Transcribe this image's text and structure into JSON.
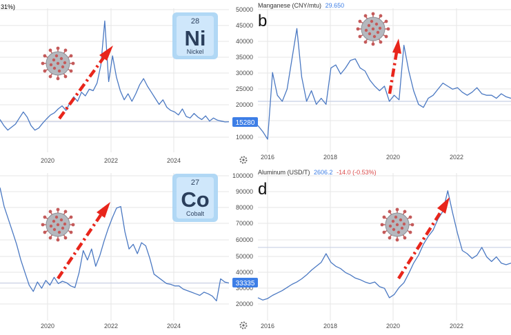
{
  "colors": {
    "line": "#4a78c2",
    "grid": "#e6e6e6",
    "ref": "#c8cfe3",
    "badge_bg": "#3d7ee6",
    "arrow": "#e8251b",
    "axis_text": "#4a4a4a",
    "title_text": "#333333",
    "value_text": "#3d7ee6",
    "change_text": "#d94848",
    "element_text": "#2b3f5c",
    "element_glow": "#a8d4f4",
    "virus": "#c45a5a"
  },
  "chart_data": [
    {
      "id": "a",
      "type": "line",
      "partial_header": "31%)",
      "element_badge": {
        "number": "28",
        "symbol": "Ni",
        "name": "Nickel"
      },
      "x_ticks": [
        "2020",
        "2022",
        "2024"
      ],
      "y_ticks": [
        "50000",
        "45000",
        "40000",
        "35000",
        "30000",
        "25000",
        "20000",
        "15000",
        "10000"
      ],
      "ylim": [
        7000,
        52000
      ],
      "reference_value": 15280,
      "price_badge": "15280",
      "icon": "gear-icon",
      "series": [
        {
          "values": [
            16000,
            14000,
            12500,
            13500,
            14500,
            16500,
            18500,
            16800,
            14000,
            12500,
            13200,
            14800,
            16200,
            17500,
            18200,
            19500,
            20500,
            19000,
            21500,
            23500,
            22000,
            25000,
            23800,
            26000,
            25500,
            28000,
            34000,
            48500,
            28500,
            37000,
            30000,
            25500,
            22500,
            24500,
            22000,
            24500,
            27500,
            29500,
            27000,
            25000,
            23000,
            21000,
            22500,
            20000,
            19000,
            18500,
            17500,
            19500,
            17000,
            16500,
            18000,
            16800,
            16000,
            17200,
            15500,
            16500,
            15800,
            15500,
            15200,
            15280
          ]
        }
      ]
    },
    {
      "id": "b",
      "type": "line",
      "letter": "b",
      "header_name": "Manganese (CNY/mtu)",
      "header_value": "29.650",
      "x_ticks": [
        "2016",
        "2018",
        "2020",
        "2022"
      ],
      "ylim": [
        7000,
        52000
      ],
      "reference_value": 22000,
      "series": [
        {
          "values": [
            14000,
            12000,
            9500,
            31500,
            24000,
            22000,
            26000,
            36000,
            46000,
            30000,
            22000,
            25500,
            21000,
            23000,
            21000,
            33000,
            34000,
            31000,
            33000,
            35500,
            36000,
            33000,
            32000,
            29000,
            27000,
            25500,
            27000,
            22000,
            24000,
            22500,
            40500,
            32000,
            25500,
            21000,
            20000,
            23000,
            24000,
            26000,
            28000,
            27000,
            26000,
            26500,
            25000,
            24000,
            25000,
            26500,
            24500,
            24000,
            24000,
            23000,
            24500,
            23500,
            23000
          ]
        }
      ]
    },
    {
      "id": "c",
      "type": "line",
      "element_badge": {
        "number": "27",
        "symbol": "Co",
        "name": "Cobalt"
      },
      "x_ticks": [
        "2020",
        "2022",
        "2024"
      ],
      "y_ticks": [
        "100000",
        "90000",
        "80000",
        "70000",
        "60000",
        "50000",
        "40000",
        "30000",
        "20000"
      ],
      "ylim": [
        13000,
        102000
      ],
      "reference_value": 33335,
      "price_badge": "33335",
      "icon": "gear-icon",
      "series": [
        {
          "values": [
            94000,
            82000,
            74000,
            66000,
            58000,
            48000,
            40000,
            32000,
            28000,
            34000,
            30000,
            35000,
            32000,
            37000,
            33000,
            34500,
            33500,
            31500,
            30500,
            40000,
            54000,
            48000,
            55000,
            44000,
            51000,
            60000,
            68000,
            75000,
            81000,
            82000,
            66000,
            55000,
            58000,
            52000,
            59000,
            57000,
            49000,
            39000,
            37000,
            35000,
            33000,
            32500,
            31500,
            31500,
            29500,
            28500,
            27500,
            26500,
            25500,
            27500,
            26500,
            25000,
            22000,
            36000,
            34000,
            33335
          ]
        }
      ]
    },
    {
      "id": "d",
      "type": "line",
      "letter": "d",
      "header_name": "Aluminum (USD/T)",
      "header_value": "2606.2",
      "header_change": "-14.0 (-0.53%)",
      "x_ticks": [
        "2016",
        "2018",
        "2020",
        "2022"
      ],
      "ylim": [
        13000,
        102000
      ],
      "reference_value": 56000,
      "series": [
        {
          "values": [
            24000,
            22500,
            23500,
            25500,
            27000,
            28500,
            30500,
            32500,
            34000,
            36000,
            38500,
            41500,
            44000,
            46500,
            52000,
            46500,
            44000,
            42500,
            40000,
            38500,
            36500,
            35500,
            34000,
            33000,
            34000,
            31000,
            30000,
            24000,
            26000,
            30500,
            33500,
            39500,
            46000,
            51000,
            58000,
            63000,
            67000,
            74000,
            79000,
            92000,
            78000,
            65000,
            54000,
            52000,
            49000,
            51000,
            56000,
            50000,
            47000,
            50000,
            46000,
            45000,
            46000
          ]
        }
      ]
    }
  ]
}
